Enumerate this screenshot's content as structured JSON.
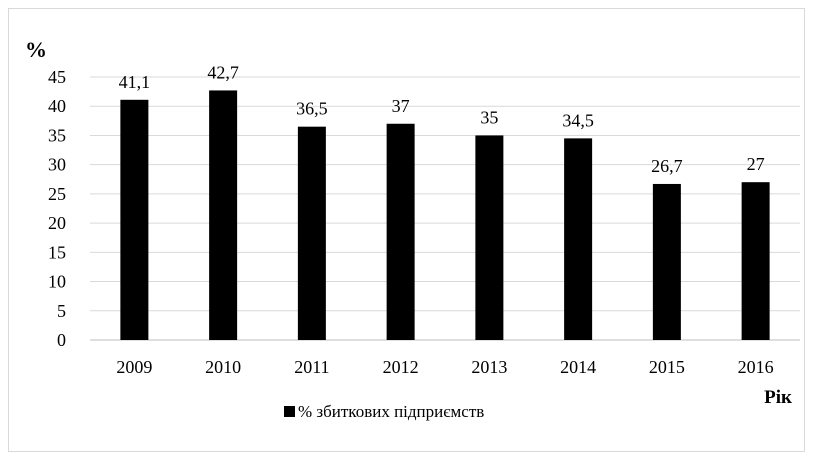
{
  "chart_data": {
    "type": "bar",
    "categories": [
      "2009",
      "2010",
      "2011",
      "2012",
      "2013",
      "2014",
      "2015",
      "2016"
    ],
    "values": [
      41.1,
      42.7,
      36.5,
      37,
      35,
      34.5,
      26.7,
      27
    ],
    "value_labels": [
      "41,1",
      "42,7",
      "36,5",
      "37",
      "35",
      "34,5",
      "26,7",
      "27"
    ],
    "series": [
      {
        "name": "% збиткових підприємств",
        "values": [
          41.1,
          42.7,
          36.5,
          37,
          35,
          34.5,
          26.7,
          27
        ]
      }
    ],
    "ylabel": "%",
    "xlabel": "Рік",
    "ylim": [
      0,
      45
    ],
    "yticks": [
      "0",
      "5",
      "10",
      "15",
      "20",
      "25",
      "30",
      "35",
      "40",
      "45"
    ],
    "grid": true,
    "legend_position": "bottom",
    "bar_color": "#000000",
    "grid_color": "#d9d9d9"
  }
}
